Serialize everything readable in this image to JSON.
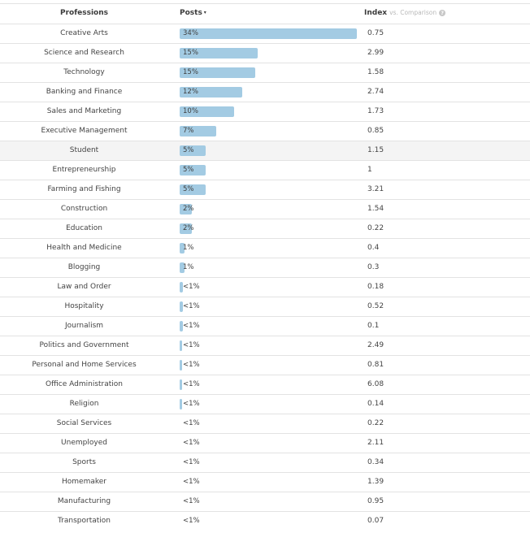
{
  "header": {
    "professions": "Professions",
    "posts": "Posts",
    "posts_caret": "▾",
    "index": "Index",
    "comparison": "vs. Comparison",
    "help": "?"
  },
  "colors": {
    "bar": "#a3cbe3",
    "highlight_row": "#f4f4f4"
  },
  "rows": [
    {
      "name": "Creative Arts",
      "label": "34%",
      "share": 34,
      "index": "0.75"
    },
    {
      "name": "Science and Research",
      "label": "15%",
      "share": 15,
      "index": "2.99"
    },
    {
      "name": "Technology",
      "label": "15%",
      "share": 14.5,
      "index": "1.58"
    },
    {
      "name": "Banking and Finance",
      "label": "12%",
      "share": 12,
      "index": "2.74"
    },
    {
      "name": "Sales and Marketing",
      "label": "10%",
      "share": 10.5,
      "index": "1.73"
    },
    {
      "name": "Executive Management",
      "label": "7%",
      "share": 7,
      "index": "0.85"
    },
    {
      "name": "Student",
      "label": "5%",
      "share": 5,
      "index": "1.15",
      "highlight": true
    },
    {
      "name": "Entrepreneurship",
      "label": "5%",
      "share": 5,
      "index": "1"
    },
    {
      "name": "Farming and Fishing",
      "label": "5%",
      "share": 5,
      "index": "3.21"
    },
    {
      "name": "Construction",
      "label": "2%",
      "share": 2.3,
      "index": "1.54"
    },
    {
      "name": "Education",
      "label": "2%",
      "share": 2.3,
      "index": "0.22"
    },
    {
      "name": "Health and Medicine",
      "label": "1%",
      "share": 1,
      "index": "0.4"
    },
    {
      "name": "Blogging",
      "label": "1%",
      "share": 1,
      "index": "0.3"
    },
    {
      "name": "Law and Order",
      "label": "<1%",
      "share": 0.6,
      "index": "0.18"
    },
    {
      "name": "Hospitality",
      "label": "<1%",
      "share": 0.6,
      "index": "0.52"
    },
    {
      "name": "Journalism",
      "label": "<1%",
      "share": 0.6,
      "index": "0.1"
    },
    {
      "name": "Politics and Government",
      "label": "<1%",
      "share": 0.4,
      "index": "2.49"
    },
    {
      "name": "Personal and Home Services",
      "label": "<1%",
      "share": 0.4,
      "index": "0.81"
    },
    {
      "name": "Office Administration",
      "label": "<1%",
      "share": 0.4,
      "index": "6.08"
    },
    {
      "name": "Religion",
      "label": "<1%",
      "share": 0.4,
      "index": "0.14"
    },
    {
      "name": "Social Services",
      "label": "<1%",
      "share": 0,
      "index": "0.22"
    },
    {
      "name": "Unemployed",
      "label": "<1%",
      "share": 0,
      "index": "2.11"
    },
    {
      "name": "Sports",
      "label": "<1%",
      "share": 0,
      "index": "0.34"
    },
    {
      "name": "Homemaker",
      "label": "<1%",
      "share": 0,
      "index": "1.39"
    },
    {
      "name": "Manufacturing",
      "label": "<1%",
      "share": 0,
      "index": "0.95"
    },
    {
      "name": "Transportation",
      "label": "<1%",
      "share": 0,
      "index": "0.07"
    }
  ]
}
